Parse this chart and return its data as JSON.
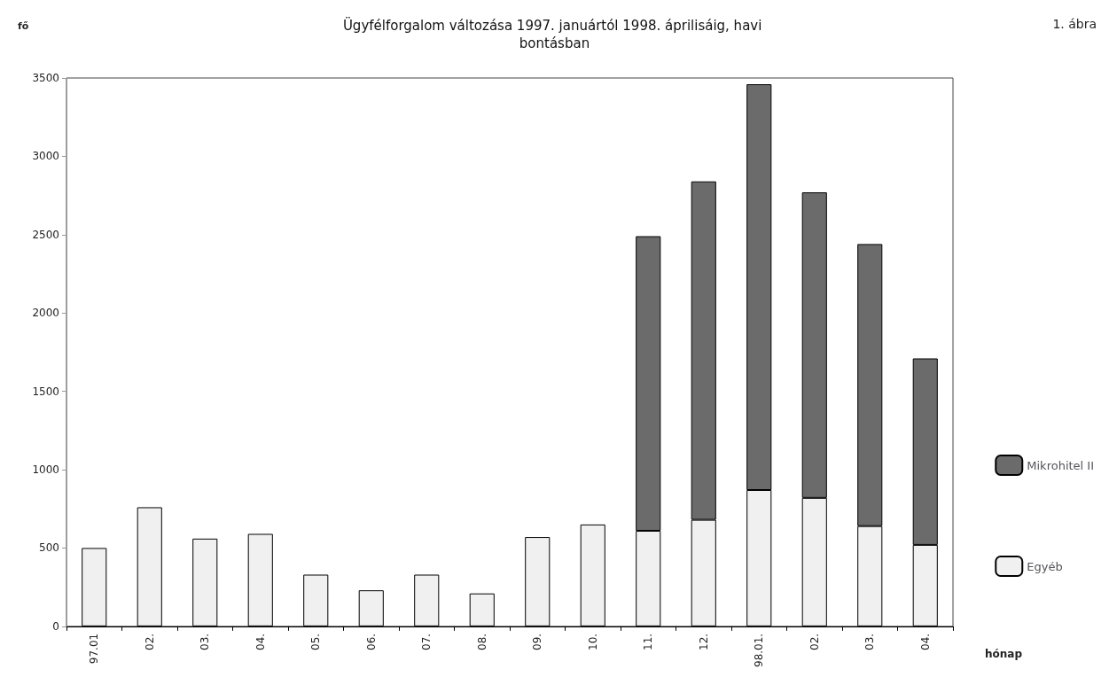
{
  "chart_data": {
    "type": "bar",
    "stacked": true,
    "title": "Ügyfélforgalom változása 1997. januártól 1998. áprilisáig, havi bontásban",
    "ylabel": "fő",
    "xlabel": "hónap",
    "annotations": [
      "1. ábra"
    ],
    "categories": [
      "97.01",
      "02.",
      "03.",
      "04.",
      "05.",
      "06.",
      "07.",
      "08.",
      "09.",
      "10.",
      "11.",
      "12.",
      "98.01.",
      "02.",
      "03.",
      "04."
    ],
    "series": [
      {
        "name": "Egyéb",
        "color": "#f0f0f0",
        "values": [
          500,
          760,
          560,
          590,
          330,
          230,
          330,
          210,
          570,
          650,
          610,
          680,
          870,
          820,
          640,
          520
        ]
      },
      {
        "name": "Mikrohitel II",
        "color": "#6b6b6b",
        "values": [
          null,
          null,
          null,
          null,
          null,
          null,
          null,
          null,
          null,
          null,
          1880,
          2160,
          2590,
          1950,
          1800,
          1190
        ]
      }
    ],
    "ylim": [
      0,
      3500
    ],
    "yticks": [
      0,
      500,
      1000,
      1500,
      2000,
      2500,
      3000,
      3500
    ],
    "grid": false,
    "legend": "right"
  }
}
